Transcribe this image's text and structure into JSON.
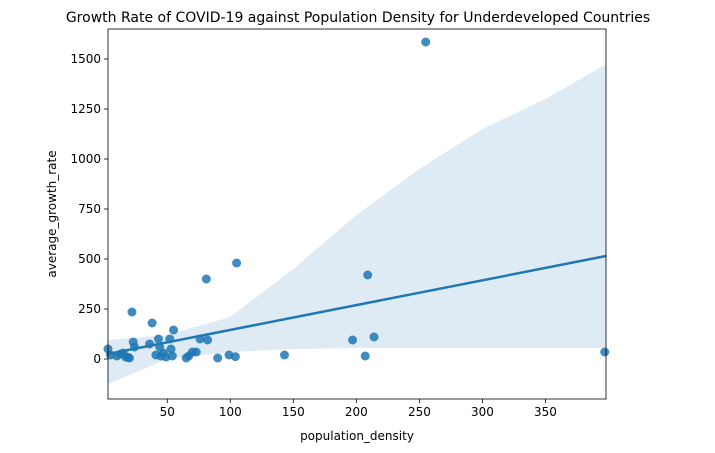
{
  "chart_data": {
    "type": "scatter",
    "title": "Growth Rate of COVID-19 against Population Density for Underdeveloped Countries",
    "xlabel": "population_density",
    "ylabel": "average_growth_rate",
    "xlim": [
      3,
      398
    ],
    "ylim": [
      -200,
      1650
    ],
    "x_ticks": [
      50,
      100,
      150,
      200,
      250,
      300,
      350
    ],
    "y_ticks": [
      0,
      250,
      500,
      750,
      1000,
      1250,
      1500
    ],
    "grid": false,
    "legend": "none",
    "colors": {
      "points": "#1f77b4",
      "line": "#1f77b4",
      "band": "#1f77b4"
    },
    "points": [
      {
        "x": 3,
        "y": 50
      },
      {
        "x": 5,
        "y": 20
      },
      {
        "x": 10,
        "y": 15
      },
      {
        "x": 13,
        "y": 25
      },
      {
        "x": 15,
        "y": 30
      },
      {
        "x": 17,
        "y": 10
      },
      {
        "x": 19,
        "y": 8
      },
      {
        "x": 20,
        "y": 5
      },
      {
        "x": 22,
        "y": 235
      },
      {
        "x": 23,
        "y": 85
      },
      {
        "x": 24,
        "y": 60
      },
      {
        "x": 36,
        "y": 75
      },
      {
        "x": 38,
        "y": 180
      },
      {
        "x": 41,
        "y": 20
      },
      {
        "x": 43,
        "y": 100
      },
      {
        "x": 44,
        "y": 60
      },
      {
        "x": 45,
        "y": 15
      },
      {
        "x": 47,
        "y": 30
      },
      {
        "x": 49,
        "y": 10
      },
      {
        "x": 52,
        "y": 100
      },
      {
        "x": 53,
        "y": 50
      },
      {
        "x": 54,
        "y": 15
      },
      {
        "x": 55,
        "y": 145
      },
      {
        "x": 65,
        "y": 5
      },
      {
        "x": 67,
        "y": 15
      },
      {
        "x": 70,
        "y": 35
      },
      {
        "x": 73,
        "y": 35
      },
      {
        "x": 76,
        "y": 100
      },
      {
        "x": 81,
        "y": 400
      },
      {
        "x": 82,
        "y": 95
      },
      {
        "x": 90,
        "y": 5
      },
      {
        "x": 99,
        "y": 20
      },
      {
        "x": 104,
        "y": 12
      },
      {
        "x": 105,
        "y": 480
      },
      {
        "x": 143,
        "y": 20
      },
      {
        "x": 197,
        "y": 95
      },
      {
        "x": 207,
        "y": 15
      },
      {
        "x": 209,
        "y": 420
      },
      {
        "x": 214,
        "y": 110
      },
      {
        "x": 255,
        "y": 1585
      },
      {
        "x": 397,
        "y": 35
      }
    ],
    "regression_line": [
      {
        "x": 3,
        "y": 25
      },
      {
        "x": 398,
        "y": 515
      }
    ],
    "confidence_band": {
      "x": [
        3,
        50,
        100,
        150,
        200,
        250,
        300,
        350,
        398
      ],
      "upper": [
        95,
        120,
        210,
        450,
        720,
        950,
        1150,
        1300,
        1475
      ],
      "lower": [
        -125,
        0,
        35,
        50,
        55,
        55,
        55,
        55,
        55
      ]
    }
  }
}
